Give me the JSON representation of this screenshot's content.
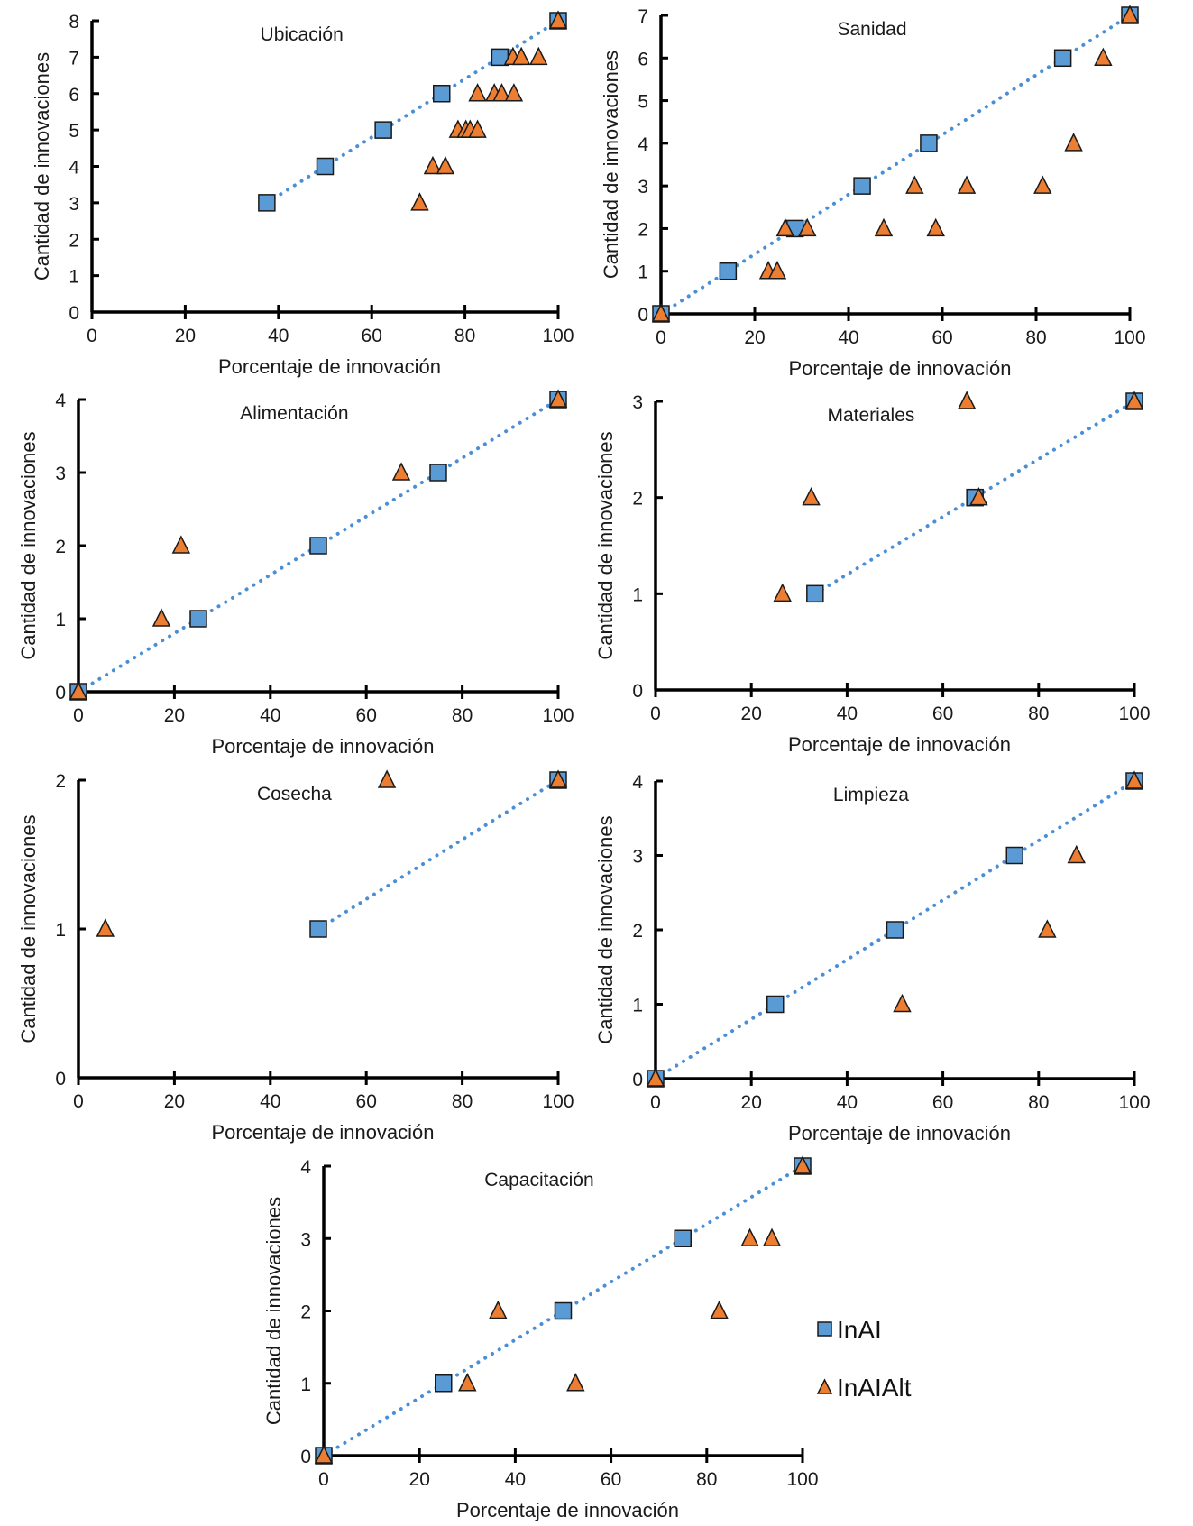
{
  "chart_data": [
    {
      "type": "scatter",
      "title": "Ubicación",
      "xlabel": "Porcentaje de innovación",
      "ylabel": "Cantidad de innovaciones",
      "xlim": [
        0,
        100
      ],
      "ylim": [
        0,
        8
      ],
      "xticks": [
        0,
        20,
        40,
        60,
        80,
        100
      ],
      "yticks": [
        0,
        1,
        2,
        3,
        4,
        5,
        6,
        7,
        8
      ],
      "trendline": {
        "series": "InAI",
        "style": "dotted",
        "from": [
          37.5,
          3
        ],
        "to": [
          100,
          8
        ]
      },
      "series": [
        {
          "name": "InAI",
          "marker": "square",
          "points": [
            [
              37.5,
              3
            ],
            [
              50,
              4
            ],
            [
              62.5,
              5
            ],
            [
              75,
              6
            ],
            [
              87.5,
              7
            ],
            [
              100,
              8
            ]
          ]
        },
        {
          "name": "InAIAlt",
          "marker": "triangle",
          "points": [
            [
              70.3,
              3
            ],
            [
              73.1,
              4
            ],
            [
              75.8,
              4
            ],
            [
              78.5,
              5
            ],
            [
              80.2,
              5
            ],
            [
              81.1,
              5
            ],
            [
              82.7,
              5
            ],
            [
              82.7,
              6
            ],
            [
              86.3,
              6
            ],
            [
              87.9,
              6
            ],
            [
              90.5,
              6
            ],
            [
              90.3,
              7
            ],
            [
              92.1,
              7
            ],
            [
              95.8,
              7
            ],
            [
              100,
              8
            ]
          ]
        }
      ]
    },
    {
      "type": "scatter",
      "title": "Sanidad",
      "xlabel": "Porcentaje de innovación",
      "ylabel": "Cantidad de innovaciones",
      "xlim": [
        0,
        100
      ],
      "ylim": [
        0,
        7
      ],
      "xticks": [
        0,
        20,
        40,
        60,
        80,
        100
      ],
      "yticks": [
        0,
        1,
        2,
        3,
        4,
        5,
        6,
        7
      ],
      "trendline": {
        "series": "InAI",
        "style": "dotted",
        "from": [
          0,
          0
        ],
        "to": [
          100,
          7
        ]
      },
      "series": [
        {
          "name": "InAI",
          "marker": "square",
          "points": [
            [
              0,
              0
            ],
            [
              14.3,
              1
            ],
            [
              28.6,
              2
            ],
            [
              42.9,
              3
            ],
            [
              57.1,
              4
            ],
            [
              85.7,
              6
            ],
            [
              100,
              7
            ]
          ]
        },
        {
          "name": "InAIAlt",
          "marker": "triangle",
          "points": [
            [
              0,
              0
            ],
            [
              22.9,
              1
            ],
            [
              24.8,
              1
            ],
            [
              26.5,
              2
            ],
            [
              31.2,
              2
            ],
            [
              47.5,
              2
            ],
            [
              54.1,
              3
            ],
            [
              58.6,
              2
            ],
            [
              65.2,
              3
            ],
            [
              81.4,
              3
            ],
            [
              88,
              4
            ],
            [
              94.3,
              6
            ],
            [
              100,
              7
            ]
          ]
        }
      ]
    },
    {
      "type": "scatter",
      "title": "Alimentación",
      "xlabel": "Porcentaje de innovación",
      "ylabel": "Cantidad de innovaciones",
      "xlim": [
        0,
        100
      ],
      "ylim": [
        0,
        4
      ],
      "xticks": [
        0,
        20,
        40,
        60,
        80,
        100
      ],
      "yticks": [
        0,
        1,
        2,
        3,
        4
      ],
      "trendline": {
        "series": "InAI",
        "style": "dotted",
        "from": [
          0,
          0
        ],
        "to": [
          100,
          4
        ]
      },
      "series": [
        {
          "name": "InAI",
          "marker": "square",
          "points": [
            [
              0,
              0
            ],
            [
              25,
              1
            ],
            [
              50,
              2
            ],
            [
              75,
              3
            ],
            [
              100,
              4
            ]
          ]
        },
        {
          "name": "InAIAlt",
          "marker": "triangle",
          "points": [
            [
              0,
              0
            ],
            [
              17.3,
              1
            ],
            [
              21.4,
              2
            ],
            [
              67.3,
              3
            ],
            [
              100,
              4
            ]
          ]
        }
      ]
    },
    {
      "type": "scatter",
      "title": "Materiales",
      "xlabel": "Porcentaje de innovación",
      "ylabel": "Cantidad de innovaciones",
      "xlim": [
        0,
        100
      ],
      "ylim": [
        0,
        3
      ],
      "xticks": [
        0,
        20,
        40,
        60,
        80,
        100
      ],
      "yticks": [
        0,
        1,
        2,
        3
      ],
      "trendline": {
        "series": "InAI",
        "style": "dotted",
        "from": [
          33.3,
          1
        ],
        "to": [
          100,
          3
        ]
      },
      "series": [
        {
          "name": "InAI",
          "marker": "square",
          "points": [
            [
              33.3,
              1
            ],
            [
              66.7,
              2
            ],
            [
              100,
              3
            ]
          ]
        },
        {
          "name": "InAIAlt",
          "marker": "triangle",
          "points": [
            [
              26.5,
              1
            ],
            [
              32.5,
              2
            ],
            [
              65,
              3
            ],
            [
              67.5,
              2
            ],
            [
              100,
              3
            ]
          ]
        }
      ]
    },
    {
      "type": "scatter",
      "title": "Cosecha",
      "xlabel": "Porcentaje de innovación",
      "ylabel": "Cantidad de innovaciones",
      "xlim": [
        0,
        100
      ],
      "ylim": [
        0,
        2
      ],
      "xticks": [
        0,
        20,
        40,
        60,
        80,
        100
      ],
      "yticks": [
        0,
        1,
        2
      ],
      "trendline": {
        "series": "InAI",
        "style": "dotted",
        "from": [
          50,
          1
        ],
        "to": [
          100,
          2
        ]
      },
      "series": [
        {
          "name": "InAI",
          "marker": "square",
          "points": [
            [
              50,
              1
            ],
            [
              100,
              2
            ]
          ]
        },
        {
          "name": "InAIAlt",
          "marker": "triangle",
          "points": [
            [
              5.6,
              1
            ],
            [
              64.3,
              2
            ],
            [
              100,
              2
            ]
          ]
        }
      ]
    },
    {
      "type": "scatter",
      "title": "Limpieza",
      "xlabel": "Porcentaje de innovación",
      "ylabel": "Cantidad de innovaciones",
      "xlim": [
        0,
        100
      ],
      "ylim": [
        0,
        4
      ],
      "xticks": [
        0,
        20,
        40,
        60,
        80,
        100
      ],
      "yticks": [
        0,
        1,
        2,
        3,
        4
      ],
      "trendline": {
        "series": "InAI",
        "style": "dotted",
        "from": [
          0,
          0
        ],
        "to": [
          100,
          4
        ]
      },
      "series": [
        {
          "name": "InAI",
          "marker": "square",
          "points": [
            [
              0,
              0
            ],
            [
              25,
              1
            ],
            [
              50,
              2
            ],
            [
              75,
              3
            ],
            [
              100,
              4
            ]
          ]
        },
        {
          "name": "InAIAlt",
          "marker": "triangle",
          "points": [
            [
              0,
              0
            ],
            [
              51.5,
              1
            ],
            [
              81.8,
              2
            ],
            [
              87.9,
              3
            ],
            [
              100,
              4
            ]
          ]
        }
      ]
    },
    {
      "type": "scatter",
      "title": "Capacitación",
      "xlabel": "Porcentaje de innovación",
      "ylabel": "Cantidad de innovaciones",
      "xlim": [
        0,
        100
      ],
      "ylim": [
        0,
        4
      ],
      "xticks": [
        0,
        20,
        40,
        60,
        80,
        100
      ],
      "yticks": [
        0,
        1,
        2,
        3,
        4
      ],
      "trendline": {
        "series": "InAI",
        "style": "dotted",
        "from": [
          0,
          0
        ],
        "to": [
          100,
          4
        ]
      },
      "legend": {
        "position": "right",
        "entries": [
          "InAI",
          "InAIAlt"
        ]
      },
      "series": [
        {
          "name": "InAI",
          "marker": "square",
          "points": [
            [
              0,
              0
            ],
            [
              25,
              1
            ],
            [
              50,
              2
            ],
            [
              75,
              3
            ],
            [
              100,
              4
            ]
          ]
        },
        {
          "name": "InAIAlt",
          "marker": "triangle",
          "points": [
            [
              0,
              0
            ],
            [
              30,
              1
            ],
            [
              36.4,
              2
            ],
            [
              52.6,
              1
            ],
            [
              82.6,
              2
            ],
            [
              89,
              3
            ],
            [
              93.6,
              3
            ],
            [
              100,
              4
            ]
          ]
        }
      ]
    }
  ],
  "legend": {
    "entries": [
      {
        "label": "InAI",
        "marker": "square",
        "color": "#5b9bd5"
      },
      {
        "label": "InAIAlt",
        "marker": "triangle",
        "color": "#ed7d31"
      }
    ]
  },
  "colors": {
    "series_inai": "#5b9bd5",
    "series_inaialt": "#ed7d31",
    "trendline": "#4a8fd6"
  }
}
